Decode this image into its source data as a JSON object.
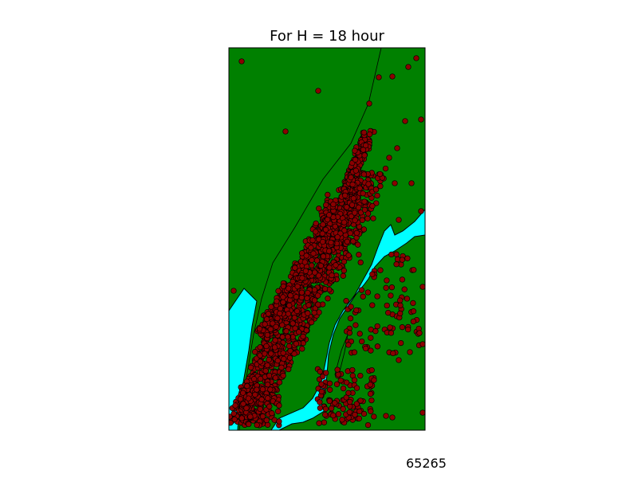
{
  "title": "For H = 18 hour",
  "count_text": "65265",
  "colors": {
    "land": "#008000",
    "water": "#00ffff",
    "points": "#8b0000",
    "point_edge": "#000000",
    "frame": "#000000"
  },
  "chart_data": {
    "type": "scatter",
    "title": "For H = 18 hour",
    "xlabel": "",
    "ylabel": "",
    "grid": false,
    "legend": "none",
    "series": [
      {
        "marker": "circle"
      }
    ]
  }
}
